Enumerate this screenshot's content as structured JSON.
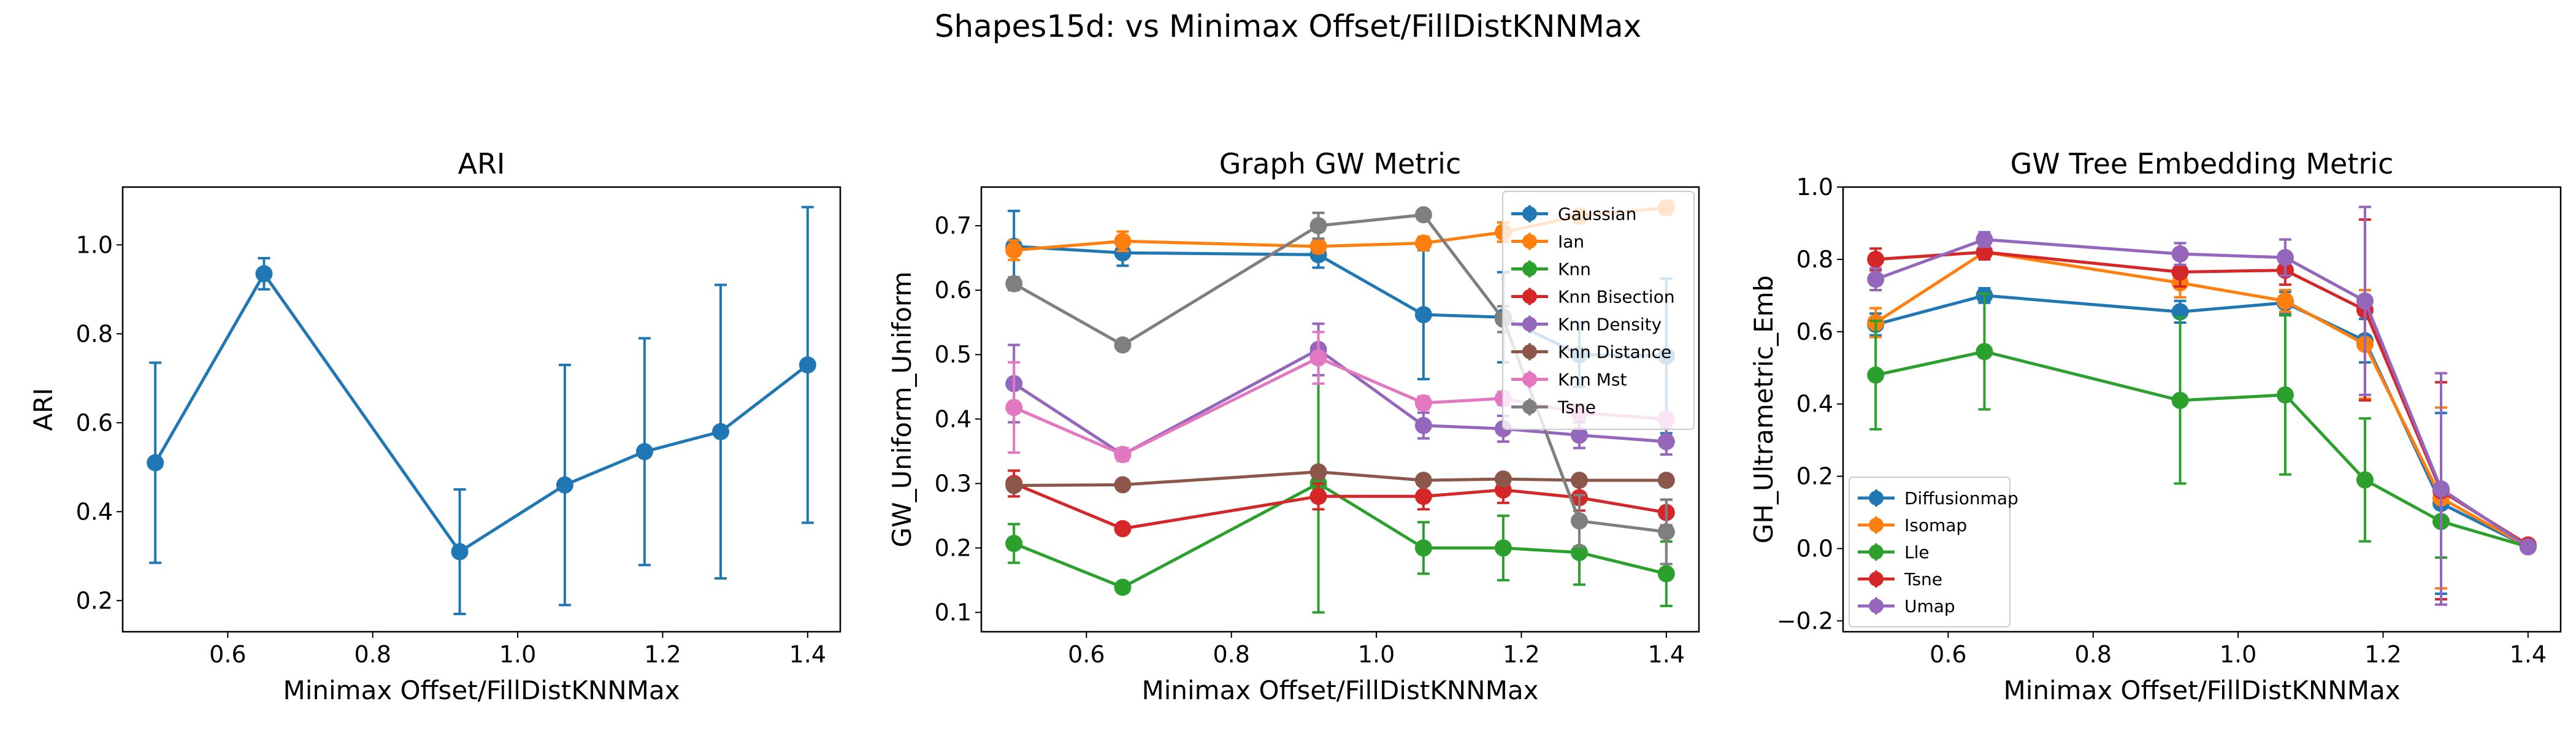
{
  "figure": {
    "title": "Shapes15d: vs Minimax Offset/FillDistKNNMax"
  },
  "chart_data": [
    {
      "type": "line",
      "title": "ARI",
      "xlabel": "Minimax Offset/FillDistKNNMax",
      "ylabel": "ARI",
      "xlim": [
        0.455,
        1.445
      ],
      "ylim": [
        0.13,
        1.13
      ],
      "xticks": [
        0.6,
        0.8,
        1.0,
        1.2,
        1.4
      ],
      "xtick_labels": [
        "0.6",
        "0.8",
        "1.0",
        "1.2",
        "1.4"
      ],
      "yticks": [
        0.2,
        0.4,
        0.6,
        0.8,
        1.0
      ],
      "ytick_labels": [
        "0.2",
        "0.4",
        "0.6",
        "0.8",
        "1.0"
      ],
      "legend": null,
      "series": [
        {
          "color": "#1f77b4",
          "x": [
            0.5,
            0.65,
            0.92,
            1.065,
            1.175,
            1.28,
            1.4
          ],
          "y": [
            0.51,
            0.935,
            0.31,
            0.46,
            0.535,
            0.58,
            0.73
          ],
          "err": [
            0.225,
            0.035,
            0.14,
            0.27,
            0.255,
            0.33,
            0.355
          ]
        }
      ]
    },
    {
      "type": "line",
      "title": "Graph GW Metric",
      "xlabel": "Minimax Offset/FillDistKNNMax",
      "ylabel": "GW_Uniform_Uniform",
      "xlim": [
        0.455,
        1.445
      ],
      "ylim": [
        0.07,
        0.76
      ],
      "xticks": [
        0.6,
        0.8,
        1.0,
        1.2,
        1.4
      ],
      "xtick_labels": [
        "0.6",
        "0.8",
        "1.0",
        "1.2",
        "1.4"
      ],
      "yticks": [
        0.1,
        0.2,
        0.3,
        0.4,
        0.5,
        0.6,
        0.7
      ],
      "ytick_labels": [
        "0.1",
        "0.2",
        "0.3",
        "0.4",
        "0.5",
        "0.6",
        "0.7"
      ],
      "legend": "top-right",
      "series": [
        {
          "name": "Gaussian",
          "color": "#1f77b4",
          "x": [
            0.5,
            0.65,
            0.92,
            1.065,
            1.175,
            1.28,
            1.4
          ],
          "y": [
            0.668,
            0.658,
            0.655,
            0.562,
            0.558,
            0.5,
            0.498
          ],
          "err": [
            0.055,
            0.02,
            0.02,
            0.1,
            0.07,
            0.05,
            0.12
          ]
        },
        {
          "name": "Ian",
          "color": "#ff7f0e",
          "x": [
            0.5,
            0.65,
            0.92,
            1.065,
            1.175,
            1.28,
            1.4
          ],
          "y": [
            0.662,
            0.676,
            0.668,
            0.673,
            0.69,
            0.715,
            0.728
          ],
          "err": [
            0.015,
            0.015,
            0.01,
            0.01,
            0.015,
            0.01,
            0.01
          ]
        },
        {
          "name": "Knn",
          "color": "#2ca02c",
          "x": [
            0.5,
            0.65,
            0.92,
            1.065,
            1.175,
            1.28,
            1.4
          ],
          "y": [
            0.207,
            0.139,
            0.3,
            0.2,
            0.2,
            0.193,
            0.16
          ],
          "err": [
            0.03,
            0.005,
            0.2,
            0.04,
            0.05,
            0.05,
            0.05
          ]
        },
        {
          "name": "Knn Bisection",
          "color": "#d62728",
          "x": [
            0.5,
            0.65,
            0.92,
            1.065,
            1.175,
            1.28,
            1.4
          ],
          "y": [
            0.3,
            0.23,
            0.28,
            0.28,
            0.29,
            0.278,
            0.255
          ],
          "err": [
            0.02,
            0.005,
            0.02,
            0.02,
            0.02,
            0.02,
            0.02
          ]
        },
        {
          "name": "Knn Density",
          "color": "#9467bd",
          "x": [
            0.5,
            0.65,
            0.92,
            1.065,
            1.175,
            1.28,
            1.4
          ],
          "y": [
            0.455,
            0.345,
            0.508,
            0.39,
            0.385,
            0.375,
            0.365
          ],
          "err": [
            0.06,
            0.01,
            0.04,
            0.02,
            0.02,
            0.02,
            0.02
          ]
        },
        {
          "name": "Knn Distance",
          "color": "#8c564b",
          "x": [
            0.5,
            0.65,
            0.92,
            1.065,
            1.175,
            1.28,
            1.4
          ],
          "y": [
            0.297,
            0.298,
            0.318,
            0.305,
            0.307,
            0.305,
            0.305
          ],
          "err": [
            0.005,
            0.005,
            0.005,
            0.005,
            0.005,
            0.005,
            0.005
          ]
        },
        {
          "name": "Knn Mst",
          "color": "#e377c2",
          "x": [
            0.5,
            0.65,
            0.92,
            1.065,
            1.175,
            1.28,
            1.4
          ],
          "y": [
            0.418,
            0.345,
            0.495,
            0.425,
            0.432,
            0.41,
            0.4
          ],
          "err": [
            0.07,
            0.01,
            0.04,
            0.01,
            0.01,
            0.01,
            0.01
          ]
        },
        {
          "name": "Tsne",
          "color": "#7f7f7f",
          "x": [
            0.5,
            0.65,
            0.92,
            1.065,
            1.175,
            1.28,
            1.4
          ],
          "y": [
            0.61,
            0.515,
            0.7,
            0.717,
            0.555,
            0.242,
            0.225
          ],
          "err": [
            0.01,
            0.005,
            0.02,
            0.005,
            0.02,
            0.04,
            0.05
          ]
        }
      ]
    },
    {
      "type": "line",
      "title": "GW Tree Embedding Metric",
      "xlabel": "Minimax Offset/FillDistKNNMax",
      "ylabel": "GH_Ultrametric_Emb",
      "xlim": [
        0.455,
        1.445
      ],
      "ylim": [
        -0.23,
        1.0
      ],
      "xticks": [
        0.6,
        0.8,
        1.0,
        1.2,
        1.4
      ],
      "xtick_labels": [
        "0.6",
        "0.8",
        "1.0",
        "1.2",
        "1.4"
      ],
      "yticks": [
        -0.2,
        0.0,
        0.2,
        0.4,
        0.6,
        0.8,
        1.0
      ],
      "ytick_labels": [
        "−0.2",
        "0.0",
        "0.2",
        "0.4",
        "0.6",
        "0.8",
        "1.0"
      ],
      "legend": "bottom-left",
      "series": [
        {
          "name": "Diffusionmap",
          "color": "#1f77b4",
          "x": [
            0.5,
            0.65,
            0.92,
            1.065,
            1.175,
            1.28,
            1.4
          ],
          "y": [
            0.62,
            0.7,
            0.655,
            0.68,
            0.575,
            0.125,
            0.005
          ],
          "err": [
            0.03,
            0.02,
            0.03,
            0.03,
            0.06,
            0.25,
            0.005
          ]
        },
        {
          "name": "Isomap",
          "color": "#ff7f0e",
          "x": [
            0.5,
            0.65,
            0.92,
            1.065,
            1.175,
            1.28,
            1.4
          ],
          "y": [
            0.625,
            0.82,
            0.735,
            0.685,
            0.565,
            0.14,
            0.005
          ],
          "err": [
            0.04,
            0.02,
            0.04,
            0.03,
            0.15,
            0.25,
            0.005
          ]
        },
        {
          "name": "Lle",
          "color": "#2ca02c",
          "x": [
            0.5,
            0.65,
            0.92,
            1.065,
            1.175,
            1.28,
            1.4
          ],
          "y": [
            0.48,
            0.545,
            0.41,
            0.425,
            0.19,
            0.075,
            0.005
          ],
          "err": [
            0.15,
            0.16,
            0.23,
            0.22,
            0.17,
            0.1,
            0.005
          ]
        },
        {
          "name": "Tsne",
          "color": "#d62728",
          "x": [
            0.5,
            0.65,
            0.92,
            1.065,
            1.175,
            1.28,
            1.4
          ],
          "y": [
            0.8,
            0.82,
            0.765,
            0.77,
            0.66,
            0.16,
            0.01
          ],
          "err": [
            0.03,
            0.02,
            0.04,
            0.04,
            0.25,
            0.3,
            0.005
          ]
        },
        {
          "name": "Umap",
          "color": "#9467bd",
          "x": [
            0.5,
            0.65,
            0.92,
            1.065,
            1.175,
            1.28,
            1.4
          ],
          "y": [
            0.745,
            0.855,
            0.815,
            0.805,
            0.685,
            0.165,
            0.005
          ],
          "err": [
            0.03,
            0.02,
            0.03,
            0.05,
            0.26,
            0.32,
            0.005
          ]
        }
      ]
    }
  ]
}
